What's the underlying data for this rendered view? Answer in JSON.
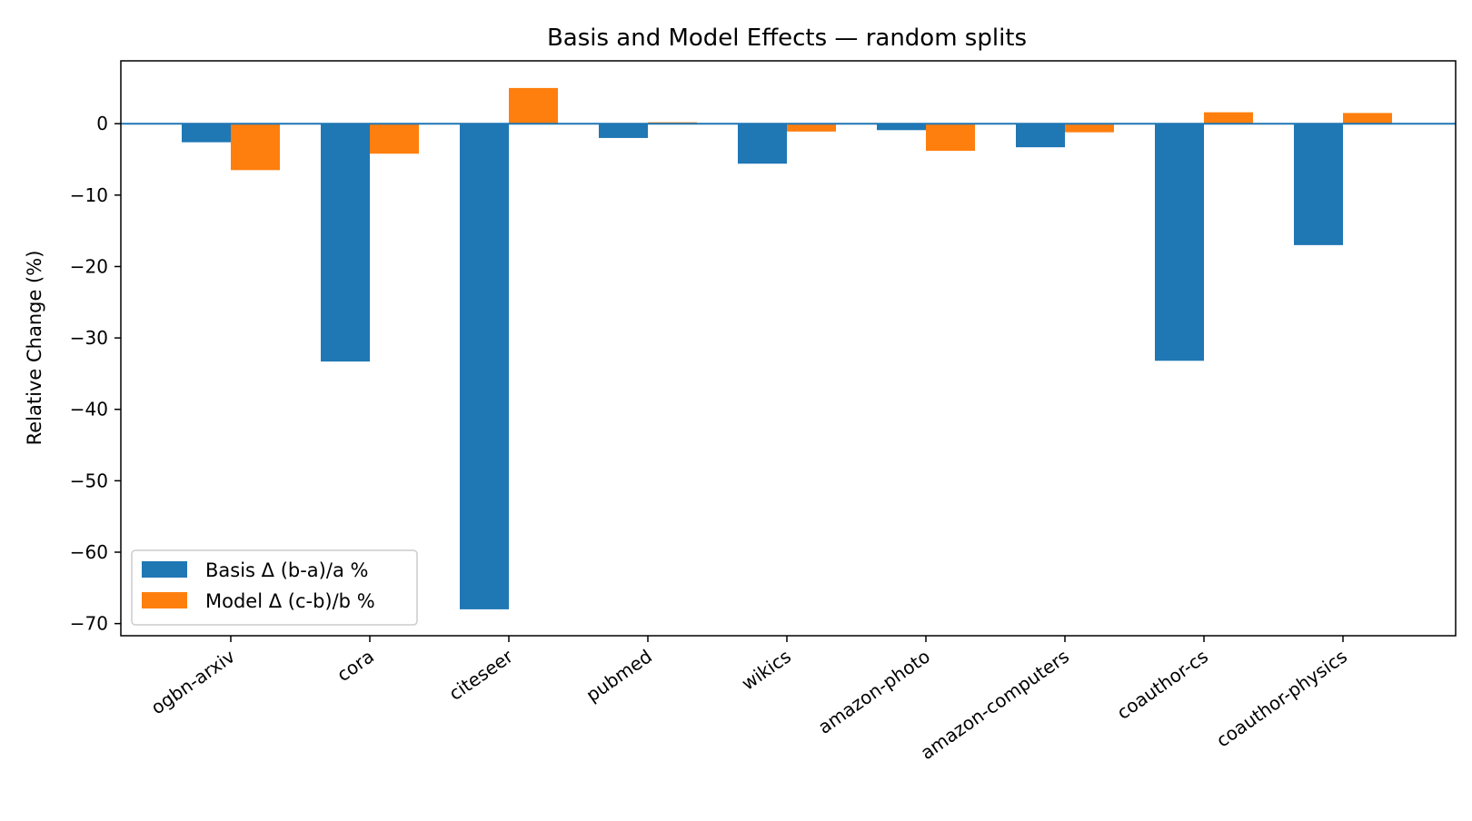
{
  "chart_data": {
    "type": "bar",
    "title": "Basis and Model Effects — random splits",
    "xlabel": "",
    "ylabel": "Relative Change (%)",
    "categories": [
      "ogbn-arxiv",
      "cora",
      "citeseer",
      "pubmed",
      "wikics",
      "amazon-photo",
      "amazon-computers",
      "coauthor-cs",
      "coauthor-physics"
    ],
    "series": [
      {
        "name": "Basis Δ (b-a)/a %",
        "color": "#1f77b4",
        "values": [
          -2.6,
          -33.3,
          -68.0,
          -2.0,
          -5.6,
          -0.9,
          -3.3,
          -33.2,
          -17.0
        ]
      },
      {
        "name": "Model Δ (c-b)/b %",
        "color": "#ff7f0e",
        "values": [
          -6.5,
          -4.2,
          5.0,
          0.2,
          -1.1,
          -3.8,
          -1.2,
          1.6,
          1.5
        ]
      }
    ],
    "ylim": [
      -71.7,
      8.8
    ],
    "yticks": [
      0,
      -10,
      -20,
      -30,
      -40,
      -50,
      -60,
      -70
    ],
    "ytick_labels": [
      "0",
      "−10",
      "−20",
      "−30",
      "−40",
      "−50",
      "−60",
      "−70"
    ],
    "zero_line_color": "#1f77b4",
    "grid": false,
    "legend_position": "lower-left"
  }
}
